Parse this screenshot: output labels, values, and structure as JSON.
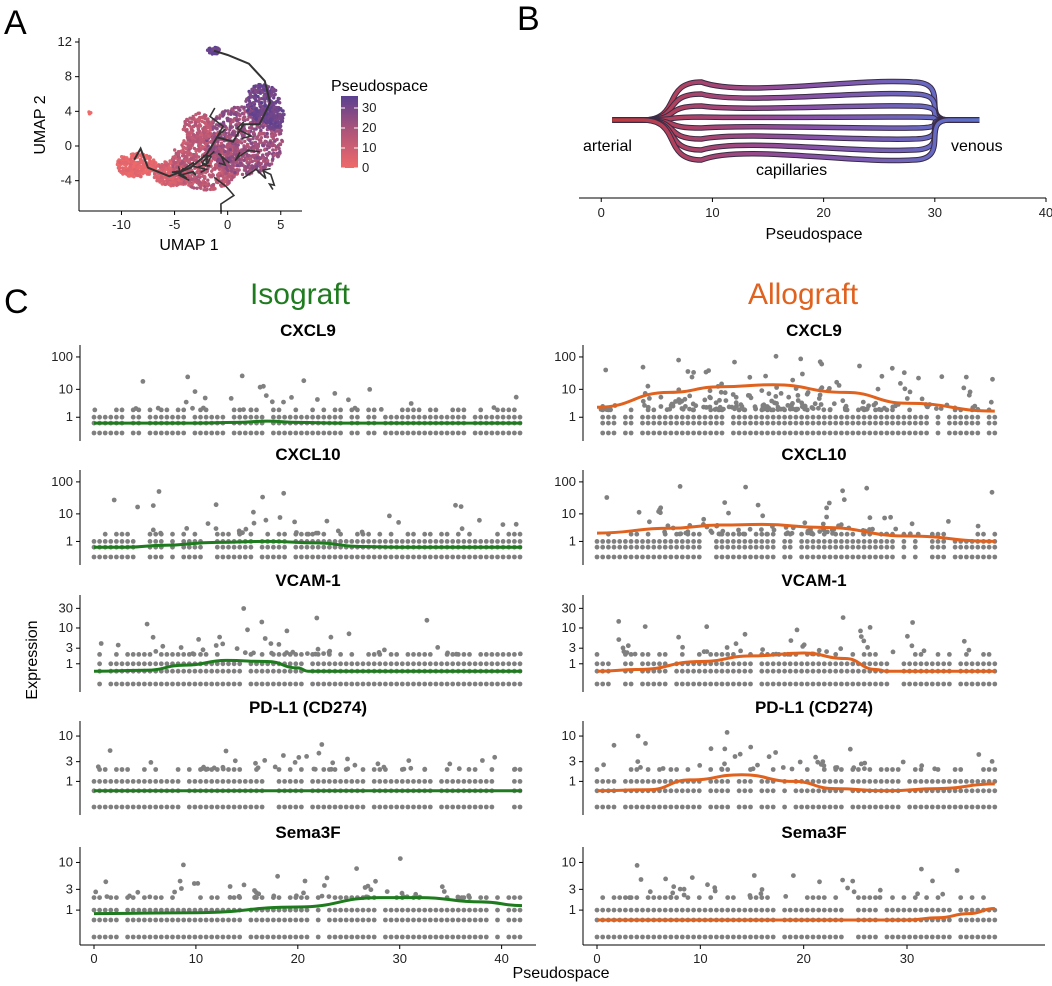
{
  "panel_letters": {
    "a": "A",
    "b": "B",
    "c": "C"
  },
  "colors": {
    "iso": "#1e7b1e",
    "allo": "#e0621f",
    "points": "#808080",
    "trajectory": "#333333"
  },
  "chart_data": [
    {
      "type": "scatter",
      "panel": "A",
      "xlabel": "UMAP 1",
      "ylabel": "UMAP 2",
      "x_ticks": [
        -10,
        -5,
        0,
        5
      ],
      "y_ticks": [
        12,
        8,
        4,
        0,
        -4
      ],
      "xlim": [
        -14,
        7
      ],
      "ylim": [
        -7.5,
        12
      ],
      "legend": {
        "title": "Pseudospace",
        "ticks": [
          30,
          20,
          10,
          0
        ],
        "range": [
          0,
          36
        ],
        "color_low": "#ef6a6a",
        "color_high": "#5b4090"
      },
      "trajectory": [
        [
          -8.8,
          -1.6
        ],
        [
          -8.2,
          -0.3
        ],
        [
          -7.5,
          -2.5
        ],
        [
          -5.5,
          -3.5
        ],
        [
          -3.5,
          -2.5
        ],
        [
          -2,
          -1
        ],
        [
          -1,
          1
        ],
        [
          0.5,
          0.5
        ],
        [
          1.5,
          2.5
        ],
        [
          3,
          2.5
        ],
        [
          4,
          5
        ],
        [
          3.5,
          7.5
        ],
        [
          2,
          9.5
        ],
        [
          0,
          10.5
        ],
        [
          -1.3,
          11
        ]
      ]
    },
    {
      "type": "diagram",
      "panel": "B",
      "xlabel": "Pseudospace",
      "x_ticks": [
        0,
        10,
        20,
        30,
        40
      ],
      "xlim": [
        -2,
        40
      ],
      "annotations": {
        "arterial": "arterial",
        "capillaries": "capillaries",
        "venous": "venous"
      },
      "vessel": {
        "start": 1,
        "split_end": 9,
        "merge_start": 28,
        "end": 34
      }
    },
    {
      "type": "scatter",
      "panel": "C",
      "xlabel": "Pseudospace",
      "ylabel": "Expression",
      "conditions": [
        {
          "name": "Isograft",
          "xlim": [
            0,
            42
          ],
          "x_ticks": [
            0,
            10,
            20,
            30,
            40
          ],
          "genes": [
            {
              "gene": "CXCL9",
              "y_ticks": [
                "100",
                "10",
                "1"
              ],
              "y_vals": [
                100,
                10,
                1
              ],
              "fit": [
                [
                  0,
                  0.5
                ],
                [
                  10,
                  0.5
                ],
                [
                  14,
                  0.55
                ],
                [
                  17,
                  0.65
                ],
                [
                  20,
                  0.55
                ],
                [
                  24,
                  0.5
                ],
                [
                  42,
                  0.5
                ]
              ]
            },
            {
              "gene": "CXCL10",
              "y_ticks": [
                "100",
                "10",
                "1"
              ],
              "y_vals": [
                100,
                10,
                1
              ],
              "fit": [
                [
                  0,
                  0.5
                ],
                [
                  3,
                  0.5
                ],
                [
                  7,
                  0.65
                ],
                [
                  12,
                  0.9
                ],
                [
                  17,
                  1.0
                ],
                [
                  22,
                  0.85
                ],
                [
                  26,
                  0.55
                ],
                [
                  30,
                  0.5
                ],
                [
                  42,
                  0.5
                ]
              ]
            },
            {
              "gene": "VCAM-1",
              "y_ticks": [
                "30",
                "10",
                "3",
                "1"
              ],
              "y_vals": [
                30,
                10,
                3,
                1
              ],
              "fit": [
                [
                  0,
                  0.5
                ],
                [
                  5,
                  0.55
                ],
                [
                  9,
                  0.9
                ],
                [
                  13,
                  1.3
                ],
                [
                  17,
                  1.2
                ],
                [
                  20,
                  0.7
                ],
                [
                  21,
                  0.5
                ],
                [
                  42,
                  0.5
                ]
              ]
            },
            {
              "gene": "PD-L1 (CD274)",
              "y_ticks": [
                "10",
                "3",
                "1"
              ],
              "y_vals": [
                10,
                3,
                1
              ],
              "fit": [
                [
                  0,
                  0.5
                ],
                [
                  42,
                  0.5
                ]
              ]
            },
            {
              "gene": "Sema3F",
              "y_ticks": [
                "10",
                "3",
                "1"
              ],
              "y_vals": [
                10,
                3,
                1
              ],
              "fit": [
                [
                  0,
                  0.8
                ],
                [
                  10,
                  0.85
                ],
                [
                  20,
                  1.2
                ],
                [
                  28,
                  2.0
                ],
                [
                  32,
                  2.0
                ],
                [
                  38,
                  1.6
                ],
                [
                  42,
                  1.3
                ]
              ]
            }
          ]
        },
        {
          "name": "Allograft",
          "xlim": [
            0,
            38.5
          ],
          "x_ticks": [
            0,
            10,
            20,
            30
          ],
          "genes": [
            {
              "gene": "CXCL9",
              "y_ticks": [
                "100",
                "10",
                "1"
              ],
              "y_vals": [
                100,
                10,
                1
              ],
              "fit": [
                [
                  0,
                  2.5
                ],
                [
                  7,
                  8
                ],
                [
                  12,
                  12
                ],
                [
                  17,
                  14
                ],
                [
                  24,
                  8
                ],
                [
                  30,
                  3.5
                ],
                [
                  38.5,
                  1.8
                ]
              ]
            },
            {
              "gene": "CXCL10",
              "y_ticks": [
                "100",
                "10",
                "1"
              ],
              "y_vals": [
                100,
                10,
                1
              ],
              "fit": [
                [
                  0,
                  2.2
                ],
                [
                  7,
                  3.3
                ],
                [
                  12,
                  4.3
                ],
                [
                  16,
                  4.5
                ],
                [
                  22,
                  3.5
                ],
                [
                  30,
                  1.7
                ],
                [
                  38.5,
                  1.0
                ]
              ]
            },
            {
              "gene": "VCAM-1",
              "y_ticks": [
                "30",
                "10",
                "3",
                "1"
              ],
              "y_vals": [
                30,
                10,
                3,
                1
              ],
              "fit": [
                [
                  0,
                  0.5
                ],
                [
                  4,
                  0.6
                ],
                [
                  10,
                  1.2
                ],
                [
                  15,
                  1.8
                ],
                [
                  20,
                  2.2
                ],
                [
                  24,
                  1.5
                ],
                [
                  27,
                  0.6
                ],
                [
                  28,
                  0.5
                ],
                [
                  38.5,
                  0.5
                ]
              ]
            },
            {
              "gene": "PD-L1 (CD274)",
              "y_ticks": [
                "10",
                "3",
                "1"
              ],
              "y_vals": [
                10,
                3,
                1
              ],
              "fit": [
                [
                  0,
                  0.5
                ],
                [
                  5,
                  0.55
                ],
                [
                  9,
                  1.1
                ],
                [
                  14,
                  1.5
                ],
                [
                  19,
                  1.0
                ],
                [
                  23,
                  0.6
                ],
                [
                  28,
                  0.5
                ],
                [
                  33,
                  0.6
                ],
                [
                  38.5,
                  0.85
                ]
              ]
            },
            {
              "gene": "Sema3F",
              "y_ticks": [
                "10",
                "3",
                "1"
              ],
              "y_vals": [
                10,
                3,
                1
              ],
              "fit": [
                [
                  0,
                  0.5
                ],
                [
                  30,
                  0.5
                ],
                [
                  33,
                  0.6
                ],
                [
                  36,
                  0.8
                ],
                [
                  38.5,
                  1.1
                ]
              ]
            }
          ]
        }
      ]
    }
  ]
}
